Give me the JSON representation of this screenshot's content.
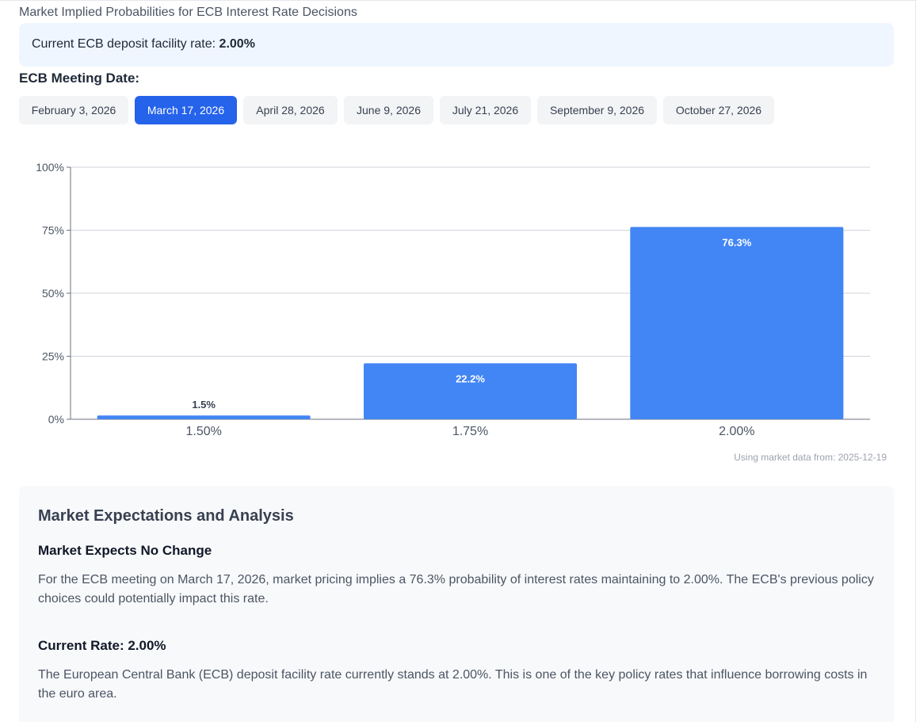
{
  "page_title": "Market Implied Probabilities for ECB Interest Rate Decisions",
  "current_rate": {
    "label": "Current ECB deposit facility rate: ",
    "value": "2.00%"
  },
  "meeting_heading": "ECB Meeting Date:",
  "meeting_dates": [
    "February 3, 2026",
    "March 17, 2026",
    "April 28, 2026",
    "June 9, 2026",
    "July 21, 2026",
    "September 9, 2026",
    "October 27, 2026"
  ],
  "selected_meeting": "March 17, 2026",
  "colors": {
    "bar": "#4285f4",
    "active_tab": "#2563eb"
  },
  "chart_data": {
    "type": "bar",
    "categories": [
      "1.50%",
      "1.75%",
      "2.00%"
    ],
    "values": [
      1.5,
      22.2,
      76.3
    ],
    "data_labels": [
      "1.5%",
      "22.2%",
      "76.3%"
    ],
    "y_ticks": [
      "0%",
      "25%",
      "50%",
      "75%",
      "100%"
    ],
    "ylim": [
      0,
      100
    ],
    "grid": true
  },
  "source_note": "Using market data from: 2025-12-19",
  "analysis": {
    "title": "Market Expectations and Analysis",
    "sections": [
      {
        "heading": "Market Expects No Change",
        "text": "For the ECB meeting on March 17, 2026, market pricing implies a 76.3% probability of interest rates maintaining to 2.00%. The ECB's previous policy choices could potentially impact this rate."
      },
      {
        "heading": "Current Rate: 2.00%",
        "text": "The European Central Bank (ECB) deposit facility rate currently stands at 2.00%. This is one of the key policy rates that influence borrowing costs in the euro area."
      }
    ]
  }
}
